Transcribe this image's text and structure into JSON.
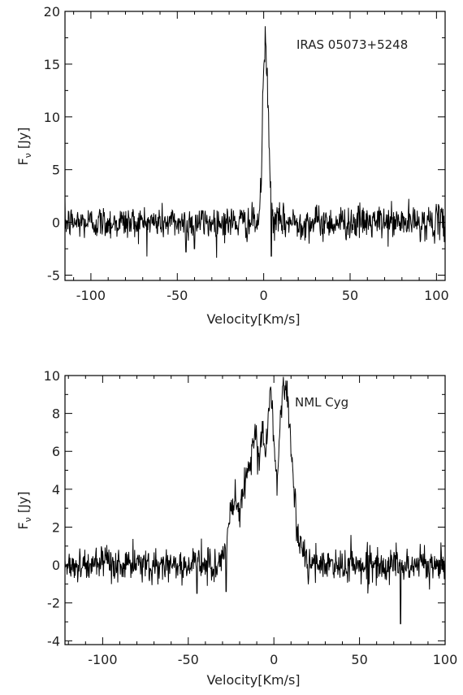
{
  "chart_data": [
    {
      "type": "line",
      "title": "",
      "annotation": "IRAS 05073+5248",
      "xlabel": "Velocity[Km/s]",
      "ylabel": "F",
      "ylabel_sub": "ν",
      "ylabel_unit": "[Jy]",
      "xlim": [
        -115,
        105
      ],
      "ylim": [
        -5.5,
        20
      ],
      "xticks": [
        -100,
        -50,
        0,
        50,
        100
      ],
      "yticks": [
        -5,
        0,
        5,
        10,
        15,
        20
      ],
      "noise_sigma": 0.8,
      "profile": [
        [
          -115,
          0
        ],
        [
          -3,
          0
        ],
        [
          -1.5,
          3
        ],
        [
          -0.5,
          12
        ],
        [
          0.5,
          16.5
        ],
        [
          1,
          17.5
        ],
        [
          1.5,
          14.5
        ],
        [
          2.5,
          12.5
        ],
        [
          3.2,
          6
        ],
        [
          4.5,
          1.5
        ],
        [
          6,
          0
        ],
        [
          105,
          0
        ]
      ],
      "dips": [
        [
          -45,
          -2.8
        ],
        [
          -40,
          -2.5
        ],
        [
          4.5,
          -3.2
        ]
      ],
      "line_color": "#000000"
    },
    {
      "type": "line",
      "title": "",
      "annotation": "NML Cyg",
      "xlabel": "Velocity[Km/s]",
      "ylabel": "F",
      "ylabel_sub": "ν",
      "ylabel_unit": "[Jy]",
      "xlim": [
        -122,
        100
      ],
      "ylim": [
        -4.2,
        10
      ],
      "xticks": [
        -100,
        -50,
        0,
        50,
        100
      ],
      "yticks": [
        -4,
        -2,
        0,
        2,
        4,
        6,
        8,
        10
      ],
      "noise_sigma": 0.45,
      "profile": [
        [
          -122,
          0
        ],
        [
          -32,
          0
        ],
        [
          -28,
          0.8
        ],
        [
          -25,
          3
        ],
        [
          -22,
          3.6
        ],
        [
          -20,
          2.6
        ],
        [
          -17,
          4.5
        ],
        [
          -14,
          5.4
        ],
        [
          -11,
          7.2
        ],
        [
          -9,
          5.2
        ],
        [
          -7,
          7.4
        ],
        [
          -5,
          5.6
        ],
        [
          -2,
          9.3
        ],
        [
          0,
          6.6
        ],
        [
          2,
          4.2
        ],
        [
          4,
          8.2
        ],
        [
          6,
          9.3
        ],
        [
          8,
          8.8
        ],
        [
          10,
          6.2
        ],
        [
          12,
          3.6
        ],
        [
          14,
          1.6
        ],
        [
          17,
          0.6
        ],
        [
          20,
          0
        ],
        [
          100,
          0
        ]
      ],
      "dips": [
        [
          74,
          -3.1
        ],
        [
          -45,
          -1.5
        ],
        [
          -28,
          -1.4
        ]
      ],
      "line_color": "#000000"
    }
  ]
}
